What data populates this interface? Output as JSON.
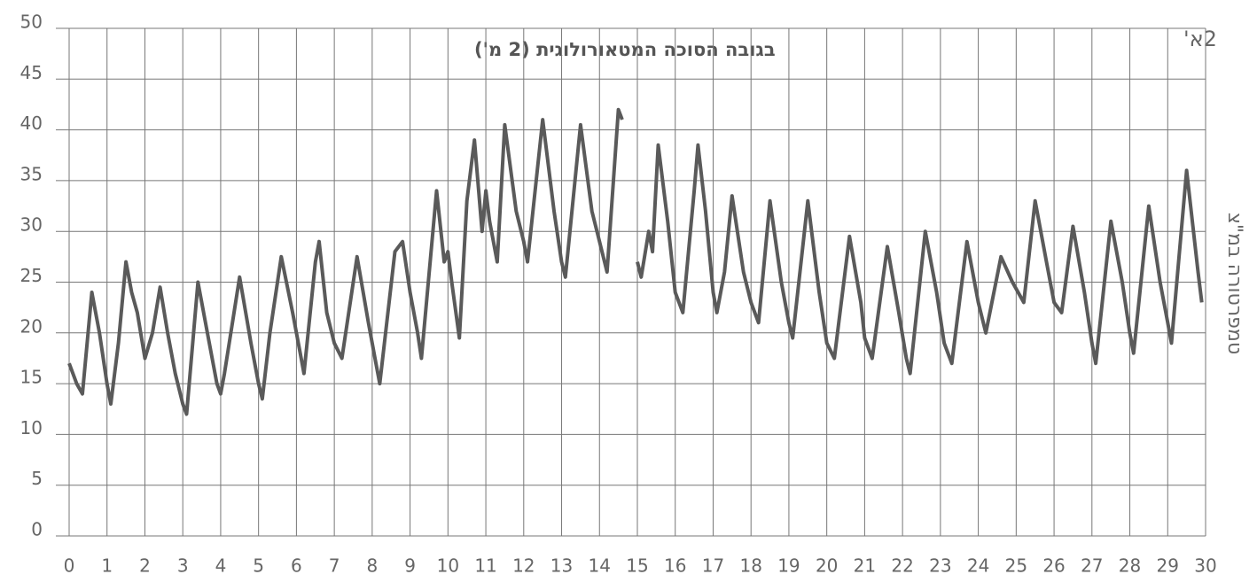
{
  "chart_data": {
    "type": "line",
    "title": "בגובה הסוכה המטאורולוגית (2 מ')",
    "annotation": "2א'",
    "y_label": "טמפרטורה במ\"צ",
    "x": [
      0,
      0.2,
      0.35,
      0.6,
      0.8,
      1.0,
      1.1,
      1.3,
      1.5,
      1.65,
      1.8,
      2.0,
      2.2,
      2.4,
      2.6,
      2.8,
      3.0,
      3.1,
      3.4,
      3.7,
      3.9,
      4.0,
      4.1,
      4.5,
      4.8,
      5.0,
      5.1,
      5.3,
      5.6,
      5.9,
      6.1,
      6.2,
      6.5,
      6.6,
      6.8,
      7.0,
      7.2,
      7.6,
      7.9,
      8.1,
      8.2,
      8.6,
      8.8,
      9.0,
      9.2,
      9.3,
      9.7,
      9.9,
      10.0,
      10.1,
      10.3,
      10.5,
      10.7,
      10.9,
      11.0,
      11.1,
      11.3,
      11.5,
      11.8,
      12.0,
      12.1,
      12.5,
      12.8,
      13.0,
      13.1,
      13.5,
      13.8,
      14.0,
      14.2,
      14.5,
      14.6,
      14.8,
      15.0,
      15.1,
      15.3,
      15.4,
      15.55,
      15.8,
      16.0,
      16.2,
      16.5,
      16.6,
      16.8,
      17.0,
      17.1,
      17.3,
      17.5,
      17.8,
      18.0,
      18.2,
      18.5,
      18.8,
      19.0,
      19.1,
      19.5,
      19.8,
      20.0,
      20.2,
      20.6,
      20.9,
      21.0,
      21.2,
      21.6,
      21.9,
      22.1,
      22.2,
      22.6,
      22.9,
      23.1,
      23.3,
      23.7,
      24.0,
      24.2,
      24.6,
      24.9,
      25.2,
      25.5,
      25.8,
      26.0,
      26.2,
      26.5,
      26.8,
      27.0,
      27.1,
      27.5,
      27.8,
      28.0,
      28.1,
      28.5,
      28.8,
      29.0,
      29.1,
      29.5,
      29.8,
      29.9
    ],
    "series": [
      {
        "color": "#5a5a5a",
        "values": [
          17,
          15,
          14,
          24,
          20,
          15,
          13,
          19,
          27,
          24,
          22,
          17.5,
          20,
          24.5,
          20,
          16,
          13,
          12,
          25,
          19,
          15,
          14,
          16,
          25.5,
          19,
          15,
          13.5,
          20,
          27.5,
          22,
          18,
          16,
          27,
          29,
          22,
          19,
          17.5,
          27.5,
          21,
          17,
          15,
          28,
          29,
          24,
          20,
          17.5,
          34,
          27,
          28,
          25,
          19.5,
          33,
          39,
          30,
          34,
          31,
          27,
          40.5,
          32,
          29,
          27,
          41,
          32,
          27,
          25.5,
          40.5,
          32,
          29,
          26,
          42,
          41,
          null,
          27,
          25.5,
          30,
          28,
          38.5,
          31,
          24,
          22,
          34,
          38.5,
          32,
          24,
          22,
          26,
          33.5,
          26,
          23,
          21,
          33,
          25,
          21,
          19.5,
          33,
          24,
          19,
          17.5,
          29.5,
          23,
          19.5,
          17.5,
          28.5,
          22,
          17.5,
          16,
          30,
          24,
          19,
          17,
          29,
          23,
          20,
          27.5,
          25,
          23,
          33,
          27,
          23,
          22,
          30.5,
          24,
          19,
          17,
          31,
          25,
          20,
          18,
          32.5,
          25,
          21,
          19,
          36,
          26,
          23
        ]
      }
    ],
    "xlim": [
      0,
      30
    ],
    "ylim": [
      0,
      50
    ],
    "xticks": [
      0,
      1,
      2,
      3,
      4,
      5,
      6,
      7,
      8,
      9,
      10,
      11,
      12,
      13,
      14,
      15,
      16,
      17,
      18,
      19,
      20,
      21,
      22,
      23,
      24,
      25,
      26,
      27,
      28,
      29,
      30
    ],
    "yticks": [
      0,
      5,
      10,
      15,
      20,
      25,
      30,
      35,
      40,
      45,
      50
    ],
    "grid": true
  }
}
